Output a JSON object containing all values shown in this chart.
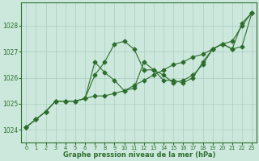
{
  "x": [
    0,
    1,
    2,
    3,
    4,
    5,
    6,
    7,
    8,
    9,
    10,
    11,
    12,
    13,
    14,
    15,
    16,
    17,
    18,
    19,
    20,
    21,
    22,
    23
  ],
  "line1": [
    1024.1,
    1024.4,
    1024.7,
    1025.1,
    1025.1,
    1025.1,
    1025.2,
    1025.3,
    1025.3,
    1025.4,
    1025.5,
    1025.7,
    1025.9,
    1026.1,
    1026.3,
    1026.5,
    1026.6,
    1026.8,
    1026.9,
    1027.1,
    1027.3,
    1027.4,
    1028.0,
    1028.5
  ],
  "line2": [
    1024.1,
    1024.4,
    1024.7,
    1025.1,
    1025.1,
    1025.1,
    1025.2,
    1026.6,
    1026.2,
    1025.9,
    1025.5,
    1025.6,
    1026.6,
    1026.3,
    1025.9,
    1025.9,
    1025.8,
    1026.0,
    1026.6,
    1027.1,
    1027.3,
    1027.1,
    1027.2,
    1028.5
  ],
  "line3": [
    1024.1,
    1024.4,
    1024.7,
    1025.1,
    1025.1,
    1025.1,
    1025.2,
    1026.1,
    1026.6,
    1027.3,
    1027.4,
    1027.1,
    1026.3,
    1026.3,
    1026.1,
    1025.8,
    1025.9,
    1026.1,
    1026.5,
    1027.1,
    1027.3,
    1027.1,
    1028.1,
    1028.5
  ],
  "bg_color": "#cce8dc",
  "grid_color": "#aaccc0",
  "line_color": "#2d6e2d",
  "xlabel": "Graphe pression niveau de la mer (hPa)",
  "ylim": [
    1023.5,
    1028.9
  ],
  "xlim": [
    -0.5,
    23.5
  ],
  "yticks": [
    1024,
    1025,
    1026,
    1027,
    1028
  ],
  "xticks": [
    0,
    1,
    2,
    3,
    4,
    5,
    6,
    7,
    8,
    9,
    10,
    11,
    12,
    13,
    14,
    15,
    16,
    17,
    18,
    19,
    20,
    21,
    22,
    23
  ]
}
